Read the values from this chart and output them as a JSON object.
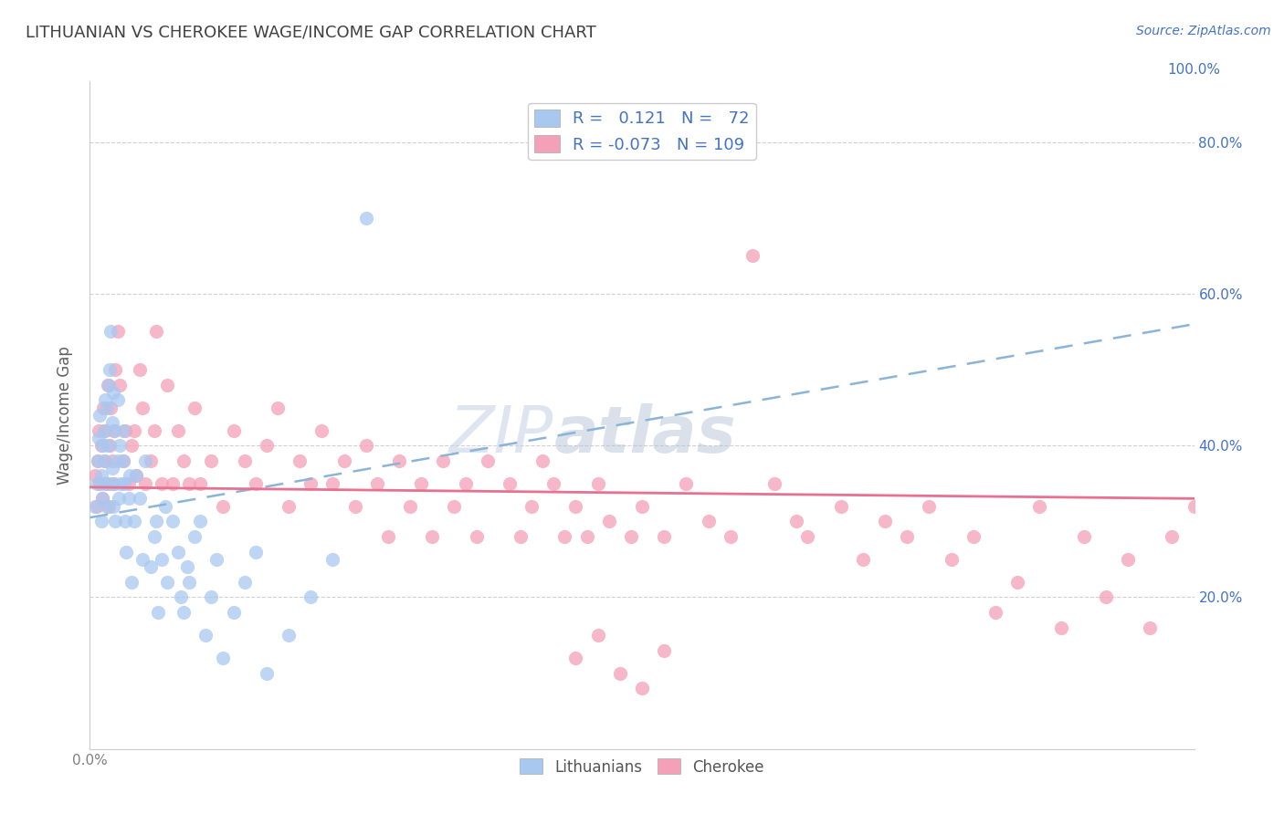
{
  "title": "LITHUANIAN VS CHEROKEE WAGE/INCOME GAP CORRELATION CHART",
  "source": "Source: ZipAtlas.com",
  "ylabel": "Wage/Income Gap",
  "xlabel": "",
  "xlim": [
    0.0,
    1.0
  ],
  "ylim": [
    0.0,
    0.88
  ],
  "xticks": [
    0.0,
    0.2,
    0.4,
    0.6,
    0.8,
    1.0
  ],
  "xticklabels": [
    "0.0%",
    "",
    "",
    "",
    "",
    ""
  ],
  "bottom_xticklabels": [
    "0.0%",
    "",
    "",
    "",
    "",
    ""
  ],
  "yticks": [
    0.2,
    0.4,
    0.6,
    0.8
  ],
  "yticklabels": [
    "20.0%",
    "40.0%",
    "60.0%",
    "80.0%"
  ],
  "right_yticks": [
    0.2,
    0.4,
    0.6,
    0.8
  ],
  "right_yticklabels": [
    "20.0%",
    "40.0%",
    "60.0%",
    "80.0%"
  ],
  "top_xticklabel": "100.0%",
  "watermark_zip": "ZIP",
  "watermark_atlas": "atlas",
  "legend_r_values": [
    "0.121",
    "-0.073"
  ],
  "legend_n_values": [
    "72",
    "109"
  ],
  "blue_scatter_color": "#a8c8f0",
  "pink_scatter_color": "#f4a0b8",
  "trendline_blue_color": "#8ab4d8",
  "trendline_pink_color": "#e87090",
  "background_color": "#ffffff",
  "grid_color": "#d0d0d0",
  "title_color": "#404040",
  "axis_label_color": "#606060",
  "tick_color": "#808080",
  "accent_color": "#4472c4",
  "blue_points_x": [
    0.005,
    0.006,
    0.007,
    0.008,
    0.009,
    0.01,
    0.01,
    0.011,
    0.011,
    0.012,
    0.013,
    0.014,
    0.014,
    0.015,
    0.015,
    0.016,
    0.017,
    0.018,
    0.018,
    0.019,
    0.02,
    0.02,
    0.021,
    0.021,
    0.022,
    0.022,
    0.023,
    0.025,
    0.025,
    0.026,
    0.027,
    0.028,
    0.03,
    0.03,
    0.031,
    0.032,
    0.033,
    0.035,
    0.036,
    0.038,
    0.04,
    0.042,
    0.045,
    0.048,
    0.05,
    0.055,
    0.058,
    0.06,
    0.062,
    0.065,
    0.068,
    0.07,
    0.075,
    0.08,
    0.082,
    0.085,
    0.088,
    0.09,
    0.095,
    0.1,
    0.105,
    0.11,
    0.115,
    0.12,
    0.13,
    0.14,
    0.15,
    0.16,
    0.18,
    0.2,
    0.22,
    0.25
  ],
  "blue_points_y": [
    0.32,
    0.35,
    0.38,
    0.41,
    0.44,
    0.36,
    0.3,
    0.33,
    0.4,
    0.35,
    0.42,
    0.38,
    0.46,
    0.32,
    0.45,
    0.4,
    0.48,
    0.35,
    0.5,
    0.55,
    0.37,
    0.43,
    0.32,
    0.47,
    0.35,
    0.42,
    0.3,
    0.38,
    0.46,
    0.33,
    0.4,
    0.35,
    0.38,
    0.42,
    0.35,
    0.3,
    0.26,
    0.33,
    0.36,
    0.22,
    0.3,
    0.36,
    0.33,
    0.25,
    0.38,
    0.24,
    0.28,
    0.3,
    0.18,
    0.25,
    0.32,
    0.22,
    0.3,
    0.26,
    0.2,
    0.18,
    0.24,
    0.22,
    0.28,
    0.3,
    0.15,
    0.2,
    0.25,
    0.12,
    0.18,
    0.22,
    0.26,
    0.1,
    0.15,
    0.2,
    0.25,
    0.7
  ],
  "pink_points_x": [
    0.005,
    0.006,
    0.007,
    0.008,
    0.009,
    0.01,
    0.011,
    0.012,
    0.013,
    0.014,
    0.015,
    0.016,
    0.017,
    0.018,
    0.019,
    0.02,
    0.021,
    0.022,
    0.023,
    0.025,
    0.027,
    0.03,
    0.032,
    0.035,
    0.038,
    0.04,
    0.042,
    0.045,
    0.048,
    0.05,
    0.055,
    0.058,
    0.06,
    0.065,
    0.07,
    0.075,
    0.08,
    0.085,
    0.09,
    0.095,
    0.1,
    0.11,
    0.12,
    0.13,
    0.14,
    0.15,
    0.16,
    0.17,
    0.18,
    0.19,
    0.2,
    0.21,
    0.22,
    0.23,
    0.24,
    0.25,
    0.26,
    0.27,
    0.28,
    0.29,
    0.3,
    0.31,
    0.32,
    0.33,
    0.34,
    0.35,
    0.36,
    0.38,
    0.39,
    0.4,
    0.41,
    0.42,
    0.43,
    0.44,
    0.45,
    0.46,
    0.47,
    0.49,
    0.5,
    0.52,
    0.54,
    0.56,
    0.58,
    0.6,
    0.62,
    0.64,
    0.65,
    0.68,
    0.7,
    0.72,
    0.74,
    0.76,
    0.78,
    0.8,
    0.82,
    0.84,
    0.86,
    0.88,
    0.9,
    0.92,
    0.94,
    0.96,
    0.98,
    1.0,
    0.5,
    0.52,
    0.48,
    0.46,
    0.44
  ],
  "pink_points_y": [
    0.36,
    0.32,
    0.38,
    0.42,
    0.35,
    0.4,
    0.33,
    0.45,
    0.38,
    0.42,
    0.35,
    0.48,
    0.32,
    0.4,
    0.45,
    0.38,
    0.35,
    0.42,
    0.5,
    0.55,
    0.48,
    0.38,
    0.42,
    0.35,
    0.4,
    0.42,
    0.36,
    0.5,
    0.45,
    0.35,
    0.38,
    0.42,
    0.55,
    0.35,
    0.48,
    0.35,
    0.42,
    0.38,
    0.35,
    0.45,
    0.35,
    0.38,
    0.32,
    0.42,
    0.38,
    0.35,
    0.4,
    0.45,
    0.32,
    0.38,
    0.35,
    0.42,
    0.35,
    0.38,
    0.32,
    0.4,
    0.35,
    0.28,
    0.38,
    0.32,
    0.35,
    0.28,
    0.38,
    0.32,
    0.35,
    0.28,
    0.38,
    0.35,
    0.28,
    0.32,
    0.38,
    0.35,
    0.28,
    0.32,
    0.28,
    0.35,
    0.3,
    0.28,
    0.32,
    0.28,
    0.35,
    0.3,
    0.28,
    0.65,
    0.35,
    0.3,
    0.28,
    0.32,
    0.25,
    0.3,
    0.28,
    0.32,
    0.25,
    0.28,
    0.18,
    0.22,
    0.32,
    0.16,
    0.28,
    0.2,
    0.25,
    0.16,
    0.28,
    0.32,
    0.08,
    0.13,
    0.1,
    0.15,
    0.12
  ]
}
